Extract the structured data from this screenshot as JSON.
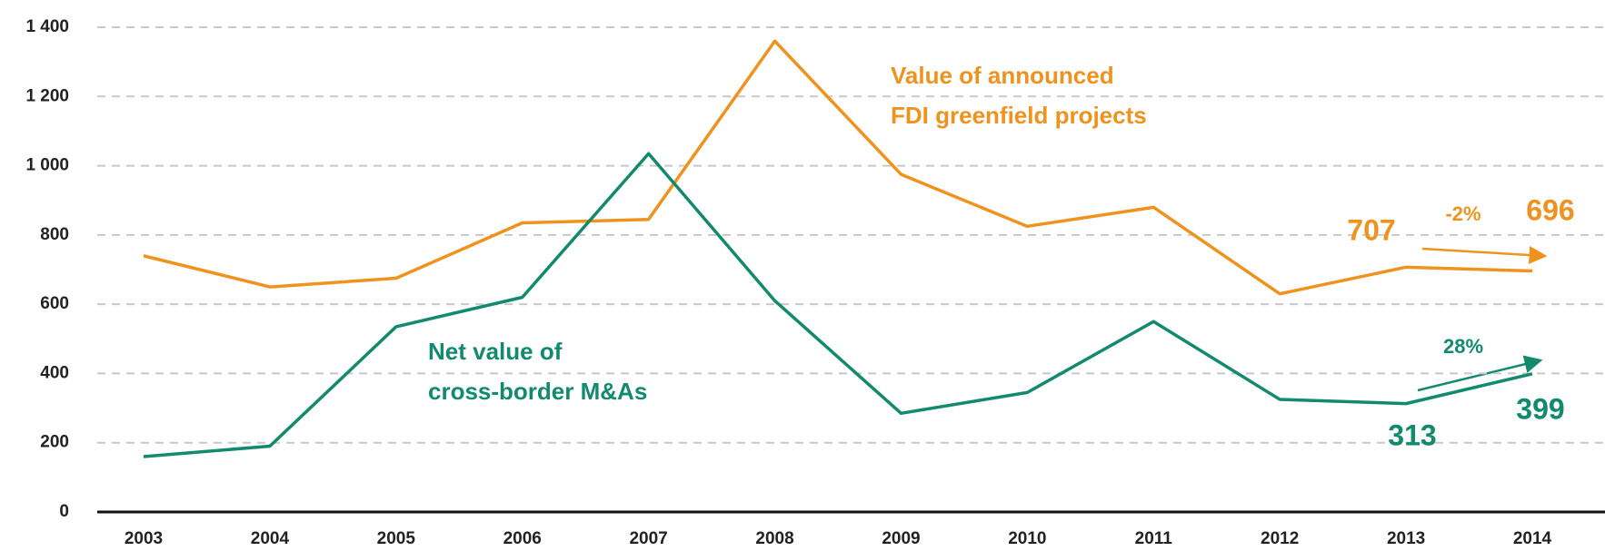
{
  "chart_data": {
    "type": "line",
    "categories": [
      "2003",
      "2004",
      "2005",
      "2006",
      "2007",
      "2008",
      "2009",
      "2010",
      "2011",
      "2012",
      "2013",
      "2014"
    ],
    "series": [
      {
        "name": "Value of announced FDI greenfield projects",
        "color": "#f0921e",
        "values": [
          740,
          650,
          675,
          835,
          845,
          1360,
          975,
          825,
          880,
          630,
          707,
          696
        ]
      },
      {
        "name": "Net value of cross-border M&As",
        "color": "#128a6e",
        "values": [
          160,
          190,
          535,
          620,
          1035,
          610,
          285,
          345,
          550,
          325,
          313,
          399
        ]
      }
    ],
    "series_labels": [
      [
        "Value of announced",
        "FDI greenfield projects"
      ],
      [
        "Net value of",
        "cross-border M&As"
      ]
    ],
    "annotations": [
      "-2%",
      "28%"
    ],
    "ylim": [
      0,
      1400
    ],
    "yticks": [
      0,
      200,
      400,
      600,
      800,
      {
        "value": 1000,
        "label": "1 000"
      },
      {
        "value": 1200,
        "label": "1 200"
      },
      {
        "value": 1400,
        "label": "1 400"
      }
    ],
    "grid": true
  }
}
